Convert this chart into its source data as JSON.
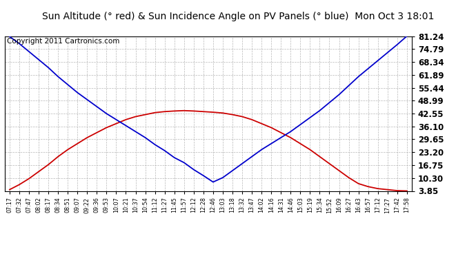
{
  "title": "Sun Altitude (° red) & Sun Incidence Angle on PV Panels (° blue)  Mon Oct 3 18:01",
  "copyright": "Copyright 2011 Cartronics.com",
  "yticks": [
    3.85,
    10.3,
    16.75,
    23.2,
    29.65,
    36.1,
    42.55,
    48.99,
    55.44,
    61.89,
    68.34,
    74.79,
    81.24
  ],
  "ymin": 3.85,
  "ymax": 81.24,
  "xtick_labels": [
    "07:17",
    "07:32",
    "07:47",
    "08:02",
    "08:17",
    "08:34",
    "08:51",
    "09:07",
    "09:22",
    "09:36",
    "09:53",
    "10:07",
    "10:21",
    "10:37",
    "10:54",
    "11:12",
    "11:27",
    "11:45",
    "11:57",
    "12:12",
    "12:28",
    "12:46",
    "13:03",
    "13:18",
    "13:32",
    "13:47",
    "14:02",
    "14:16",
    "14:31",
    "14:46",
    "15:03",
    "15:19",
    "15:34",
    "15:52",
    "16:09",
    "16:27",
    "16:43",
    "16:57",
    "17:12",
    "17:27",
    "17:42",
    "17:58"
  ],
  "red_values": [
    4.5,
    7.0,
    10.0,
    13.5,
    17.0,
    21.0,
    24.5,
    27.5,
    30.5,
    33.0,
    35.5,
    37.5,
    39.5,
    41.0,
    42.0,
    43.0,
    43.5,
    43.8,
    44.0,
    43.8,
    43.5,
    43.2,
    42.8,
    42.0,
    41.0,
    39.5,
    37.5,
    35.5,
    33.0,
    30.5,
    27.5,
    24.5,
    21.0,
    17.5,
    14.0,
    10.5,
    7.5,
    6.0,
    5.0,
    4.5,
    4.0,
    3.85
  ],
  "blue_values": [
    81.0,
    77.5,
    73.5,
    69.5,
    65.5,
    61.0,
    57.0,
    53.0,
    49.5,
    46.0,
    42.5,
    39.5,
    36.5,
    33.5,
    30.5,
    27.0,
    24.0,
    20.5,
    18.0,
    14.5,
    11.5,
    8.3,
    10.5,
    14.0,
    17.5,
    21.0,
    24.5,
    27.5,
    30.5,
    33.5,
    37.0,
    40.5,
    44.0,
    48.0,
    52.0,
    56.5,
    61.0,
    65.0,
    69.0,
    73.0,
    77.0,
    81.24
  ],
  "red_color": "#cc0000",
  "blue_color": "#0000cc",
  "bg_color": "#ffffff",
  "grid_color": "#aaaaaa",
  "title_fontsize": 10.0,
  "copyright_fontsize": 7.5
}
